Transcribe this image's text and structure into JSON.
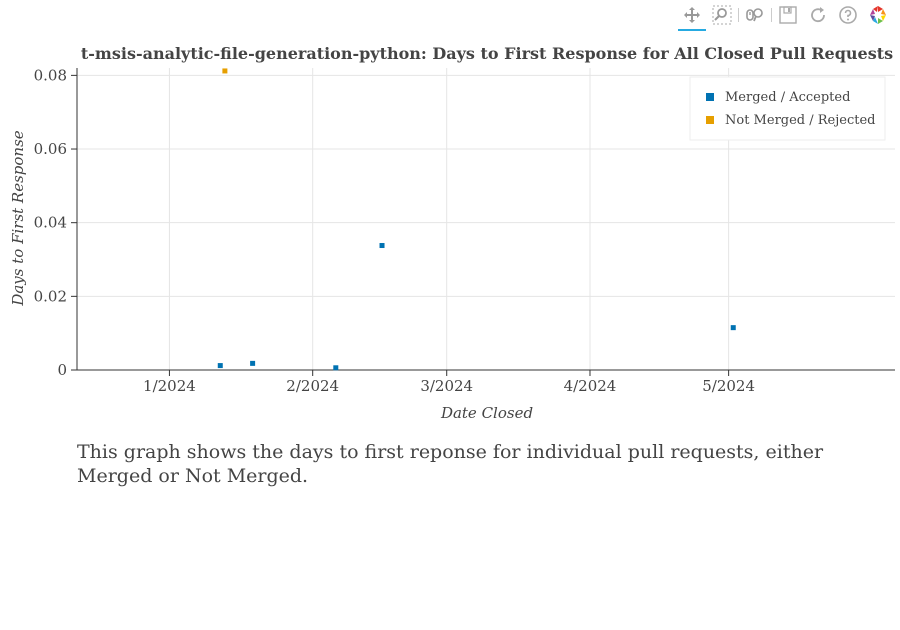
{
  "toolbar": {
    "tools": [
      "pan-icon",
      "box-zoom-icon",
      "wheel-zoom-icon",
      "save-icon",
      "reset-icon",
      "help-icon",
      "bokeh-logo"
    ]
  },
  "chart_data": {
    "type": "scatter",
    "title": "t-msis-analytic-file-generation-python: Days to First Response for All Closed Pull Requests",
    "xlabel": "Date Closed",
    "ylabel": "Days to First Response",
    "x_range": [
      "2023-12-12",
      "2024-06-06"
    ],
    "y_range": [
      0,
      0.082
    ],
    "x_ticks": [
      {
        "date": "2024-01-01",
        "label": "1/2024"
      },
      {
        "date": "2024-02-01",
        "label": "2/2024"
      },
      {
        "date": "2024-03-01",
        "label": "3/2024"
      },
      {
        "date": "2024-04-01",
        "label": "4/2024"
      },
      {
        "date": "2024-05-01",
        "label": "5/2024"
      }
    ],
    "y_ticks": [
      {
        "value": 0,
        "label": "0"
      },
      {
        "value": 0.02,
        "label": "0.02"
      },
      {
        "value": 0.04,
        "label": "0.04"
      },
      {
        "value": 0.06,
        "label": "0.06"
      },
      {
        "value": 0.08,
        "label": "0.08"
      }
    ],
    "grid": true,
    "legend_position": "top-right",
    "series": [
      {
        "name": "Merged / Accepted",
        "color": "#0072B2",
        "points": [
          {
            "x": "2024-01-12",
            "y": 0.0012
          },
          {
            "x": "2024-01-19",
            "y": 0.0018
          },
          {
            "x": "2024-02-06",
            "y": 0.0006
          },
          {
            "x": "2024-02-16",
            "y": 0.0338
          },
          {
            "x": "2024-05-02",
            "y": 0.0115
          }
        ]
      },
      {
        "name": "Not Merged / Rejected",
        "color": "#E69F00",
        "points": [
          {
            "x": "2024-01-13",
            "y": 0.0812
          }
        ]
      }
    ]
  },
  "caption": "This graph shows the days to first reponse for individual pull requests, either Merged or Not Merged."
}
